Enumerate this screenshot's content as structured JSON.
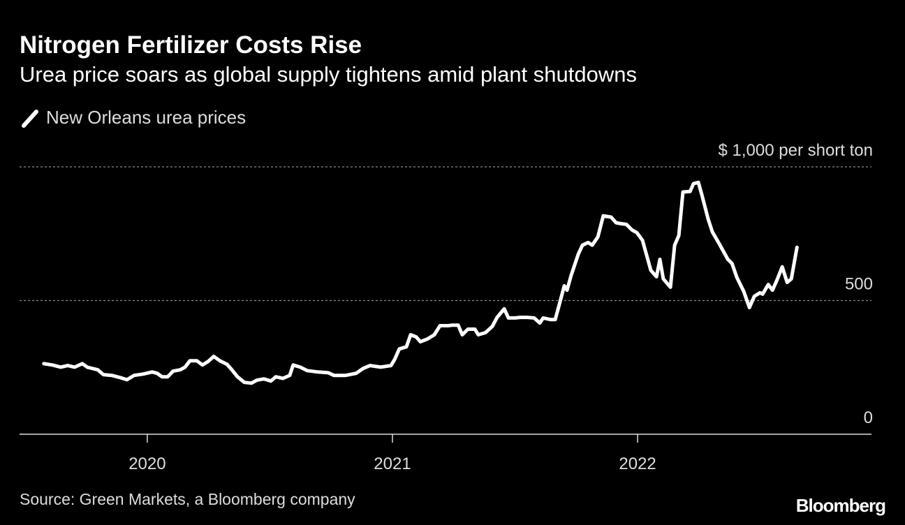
{
  "chart_data": {
    "type": "line",
    "title": "Nitrogen Fertilizer Costs Rise",
    "subtitle": "Urea price soars as global supply tightens amid plant shutdowns",
    "source": "Source: Green Markets, a Bloomberg company",
    "brand": "Bloomberg",
    "x": [
      2019.578,
      2019.613,
      2019.647,
      2019.675,
      2019.704,
      2019.735,
      2019.755,
      2019.798,
      2019.821,
      2019.855,
      2019.889,
      2019.917,
      2019.946,
      2019.983,
      2020.02,
      2020.04,
      2020.06,
      2020.083,
      2020.105,
      2020.134,
      2020.154,
      2020.174,
      2020.202,
      2020.225,
      2020.248,
      2020.271,
      2020.296,
      2020.325,
      2020.345,
      2020.368,
      2020.396,
      2020.425,
      2020.447,
      2020.476,
      2020.504,
      2020.524,
      2020.553,
      2020.581,
      2020.595,
      2020.624,
      2020.652,
      2020.695,
      2020.738,
      2020.761,
      2020.809,
      2020.852,
      2020.88,
      2020.909,
      2020.952,
      2020.994,
      2021.009,
      2021.028,
      2021.057,
      2021.074,
      2021.097,
      2021.114,
      2021.142,
      2021.171,
      2021.194,
      2021.228,
      2021.245,
      2021.268,
      2021.285,
      2021.308,
      2021.336,
      2021.35,
      2021.379,
      2021.407,
      2021.427,
      2021.456,
      2021.473,
      2021.501,
      2021.521,
      2021.55,
      2021.578,
      2021.601,
      2021.615,
      2021.644,
      2021.664,
      2021.678,
      2021.701,
      2021.712,
      2021.729,
      2021.758,
      2021.775,
      2021.798,
      2021.815,
      2021.838,
      2021.86,
      2021.892,
      2021.912,
      2021.929,
      2021.954,
      2021.977,
      2021.997,
      2022.02,
      2022.054,
      2022.077,
      2022.091,
      2022.105,
      2022.134,
      2022.151,
      2022.168,
      2022.185,
      2022.214,
      2022.228,
      2022.248,
      2022.262,
      2022.288,
      2022.305,
      2022.333,
      2022.368,
      2022.385,
      2022.405,
      2022.433,
      2022.456,
      2022.476,
      2022.499,
      2022.51,
      2022.533,
      2022.55,
      2022.567,
      2022.59,
      2022.61,
      2022.627,
      2022.65
    ],
    "series": [
      {
        "name": "New Orleans urea prices",
        "color": "#ffffff",
        "values": [
          264,
          259,
          251,
          257,
          251,
          264,
          251,
          241,
          223,
          220,
          212,
          204,
          220,
          225,
          233,
          228,
          215,
          215,
          236,
          241,
          251,
          275,
          275,
          259,
          272,
          291,
          275,
          262,
          241,
          215,
          194,
          191,
          202,
          207,
          199,
          215,
          209,
          220,
          259,
          251,
          238,
          233,
          230,
          220,
          220,
          228,
          246,
          257,
          251,
          257,
          280,
          319,
          327,
          372,
          364,
          346,
          356,
          372,
          406,
          406,
          408,
          408,
          372,
          393,
          393,
          372,
          380,
          403,
          437,
          469,
          435,
          435,
          437,
          437,
          435,
          416,
          435,
          429,
          429,
          476,
          555,
          539,
          594,
          673,
          707,
          717,
          707,
          738,
          817,
          812,
          791,
          788,
          785,
          764,
          754,
          725,
          613,
          589,
          654,
          581,
          550,
          707,
          743,
          906,
          908,
          937,
          942,
          895,
          804,
          757,
          712,
          654,
          639,
          586,
          534,
          474,
          516,
          529,
          524,
          560,
          539,
          573,
          626,
          568,
          581,
          699
        ]
      }
    ],
    "xlim": [
      2019.479,
      2022.954
    ],
    "xticks": [
      2020,
      2021,
      2022
    ],
    "ylim": [
      0,
      1000
    ],
    "yticks": [
      0,
      500,
      {
        "value": 1000,
        "label": "$ 1,000 per short ton"
      }
    ],
    "grid": true
  }
}
